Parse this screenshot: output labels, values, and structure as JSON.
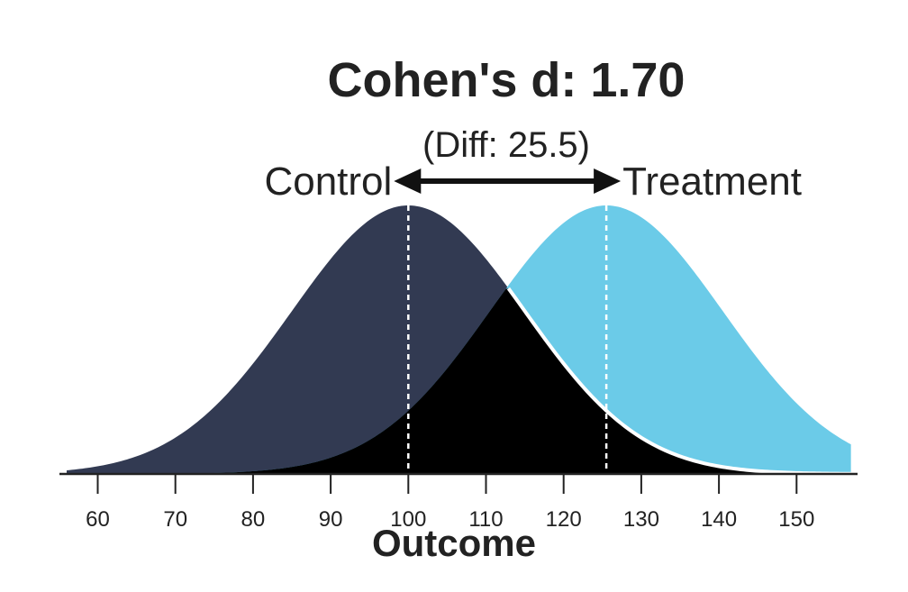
{
  "chart_data": {
    "type": "area",
    "title": "Cohen's d: 1.70",
    "subtitle": "(Diff: 25.5)",
    "xlabel": "Outcome",
    "ylabel": "",
    "xlim": [
      56,
      157
    ],
    "x_ticks": [
      60,
      70,
      80,
      90,
      100,
      110,
      120,
      130,
      140,
      150
    ],
    "grid": false,
    "series": [
      {
        "name": "Control",
        "mean": 100,
        "sd": 15,
        "color": "#323a52"
      },
      {
        "name": "Treatment",
        "mean": 125.5,
        "sd": 15,
        "color": "#6bcbe8"
      }
    ],
    "overlap_color": "#000000",
    "mean_line_color": "#ffffff",
    "arrow_color": "#111111"
  }
}
